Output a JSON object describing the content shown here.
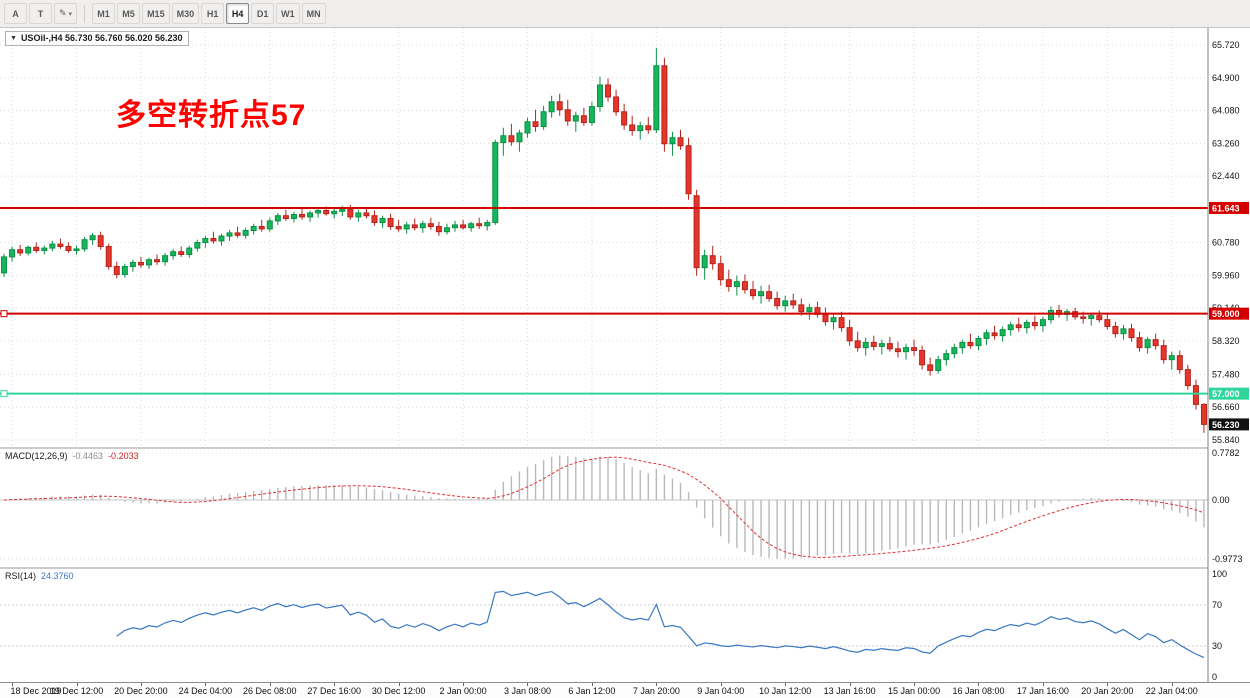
{
  "toolbar": {
    "tools": [
      {
        "label": "A",
        "name": "tool-a-button"
      },
      {
        "label": "T",
        "name": "text-tool-button"
      },
      {
        "label": "✎",
        "name": "drawing-tools-button",
        "has_dropdown": true
      }
    ],
    "timeframes": [
      {
        "label": "M1"
      },
      {
        "label": "M5"
      },
      {
        "label": "M15"
      },
      {
        "label": "M30"
      },
      {
        "label": "H1"
      },
      {
        "label": "H4",
        "active": true
      },
      {
        "label": "D1"
      },
      {
        "label": "W1"
      },
      {
        "label": "MN"
      }
    ]
  },
  "chart": {
    "symbol_ohlc": "USOil-,H4 56.730 56.760 56.020 56.230",
    "annotation": {
      "text": "多空转折点57",
      "color": "#ff0000"
    },
    "macd": {
      "name": "MACD(12,26,9)",
      "value1": "-0.4463",
      "value2": "-0.2033"
    },
    "rsi": {
      "name": "RSI(14)",
      "value": "24.3760"
    }
  },
  "chart_data": {
    "type": "candlestick",
    "symbol": "USOil-",
    "timeframe": "H4",
    "quote": {
      "open": "56.730",
      "high": "56.760",
      "low": "56.020",
      "close": "56.230"
    },
    "colors": {
      "up": "#16b75c",
      "up_border": "#0b8f45",
      "down": "#e6352b",
      "down_border": "#b3241c",
      "macd_bar": "#b9b9b9",
      "macd_signal": "#e03131",
      "rsi_line": "#3a77c2",
      "grid": "#dadada",
      "hline_red": "#d40000",
      "hline_green": "#2fd69b",
      "current_tag_bg": "#111111"
    },
    "price_axis": {
      "top_price": 65.72,
      "bottom_price": 55.84,
      "labels": [
        "65.720",
        "64.900",
        "64.080",
        "63.260",
        "62.440",
        "61.620",
        "60.780",
        "59.960",
        "59.140",
        "58.320",
        "57.480",
        "56.660",
        "55.840"
      ]
    },
    "time_axis": {
      "labels": [
        "18 Dec 2019",
        "19 Dec 12:00",
        "20 Dec 20:00",
        "24 Dec 04:00",
        "26 Dec 08:00",
        "27 Dec 16:00",
        "30 Dec 12:00",
        "2 Jan 00:00",
        "3 Jan 08:00",
        "6 Jan 12:00",
        "7 Jan 20:00",
        "9 Jan 04:00",
        "10 Jan 12:00",
        "13 Jan 16:00",
        "15 Jan 00:00",
        "16 Jan 08:00",
        "17 Jan 16:00",
        "20 Jan 20:00",
        "22 Jan 04:00"
      ],
      "bar_indices": [
        1,
        9,
        17,
        25,
        33,
        41,
        49,
        57,
        65,
        73,
        81,
        89,
        97,
        105,
        113,
        121,
        129,
        137,
        145
      ]
    },
    "hlines": [
      {
        "name": "hline-61643",
        "price": 61.643,
        "label": "61.643",
        "color": "#d40000",
        "handle": false
      },
      {
        "name": "hline-59000",
        "price": 59.0,
        "label": "59.000",
        "color": "#d40000",
        "handle": true
      },
      {
        "name": "hline-57000",
        "price": 57.0,
        "label": "57.000",
        "color": "#2fd69b",
        "handle": true
      }
    ],
    "current_price": {
      "price": 56.23,
      "label": "56.230"
    },
    "macd": {
      "params": "12,26,9",
      "values": [
        "-0.4463",
        "-0.2033"
      ],
      "axis": [
        "0.7782",
        "0.00",
        "-0.9773"
      ]
    },
    "rsi": {
      "period": 14,
      "value": "24.3760",
      "axis": [
        "100",
        "70",
        "30",
        "0"
      ],
      "levels": [
        70,
        30
      ]
    },
    "candles": [
      [
        60.02,
        60.5,
        59.92,
        60.42
      ],
      [
        60.42,
        60.68,
        60.3,
        60.6
      ],
      [
        60.6,
        60.72,
        60.44,
        60.52
      ],
      [
        60.52,
        60.7,
        60.46,
        60.66
      ],
      [
        60.66,
        60.78,
        60.52,
        60.58
      ],
      [
        60.58,
        60.7,
        60.48,
        60.64
      ],
      [
        60.64,
        60.82,
        60.56,
        60.74
      ],
      [
        60.74,
        60.88,
        60.62,
        60.68
      ],
      [
        60.68,
        60.78,
        60.52,
        60.58
      ],
      [
        60.58,
        60.7,
        60.48,
        60.62
      ],
      [
        60.62,
        60.92,
        60.55,
        60.85
      ],
      [
        60.85,
        61.02,
        60.72,
        60.95
      ],
      [
        60.95,
        61.05,
        60.6,
        60.68
      ],
      [
        60.68,
        60.75,
        60.1,
        60.18
      ],
      [
        60.18,
        60.3,
        59.88,
        59.98
      ],
      [
        59.98,
        60.25,
        59.9,
        60.18
      ],
      [
        60.18,
        60.35,
        60.05,
        60.28
      ],
      [
        60.28,
        60.42,
        60.15,
        60.22
      ],
      [
        60.22,
        60.4,
        60.12,
        60.35
      ],
      [
        60.35,
        60.48,
        60.22,
        60.3
      ],
      [
        60.3,
        60.52,
        60.2,
        60.45
      ],
      [
        60.45,
        60.62,
        60.35,
        60.55
      ],
      [
        60.55,
        60.68,
        60.42,
        60.48
      ],
      [
        60.48,
        60.7,
        60.4,
        60.64
      ],
      [
        60.64,
        60.85,
        60.55,
        60.78
      ],
      [
        60.78,
        60.95,
        60.65,
        60.88
      ],
      [
        60.88,
        61.05,
        60.75,
        60.82
      ],
      [
        60.82,
        61.0,
        60.7,
        60.94
      ],
      [
        60.94,
        61.1,
        60.82,
        61.02
      ],
      [
        61.02,
        61.18,
        60.9,
        60.96
      ],
      [
        60.96,
        61.15,
        60.88,
        61.08
      ],
      [
        61.08,
        61.25,
        60.98,
        61.18
      ],
      [
        61.18,
        61.35,
        61.05,
        61.12
      ],
      [
        61.12,
        61.4,
        61.05,
        61.32
      ],
      [
        61.32,
        61.52,
        61.22,
        61.45
      ],
      [
        61.45,
        61.6,
        61.32,
        61.38
      ],
      [
        61.38,
        61.55,
        61.28,
        61.48
      ],
      [
        61.48,
        61.64,
        61.35,
        61.42
      ],
      [
        61.42,
        61.58,
        61.3,
        61.52
      ],
      [
        61.52,
        61.66,
        61.4,
        61.58
      ],
      [
        61.58,
        61.68,
        61.45,
        61.5
      ],
      [
        61.5,
        61.62,
        61.38,
        61.56
      ],
      [
        61.56,
        61.7,
        61.44,
        61.62
      ],
      [
        61.62,
        61.72,
        61.35,
        61.42
      ],
      [
        61.42,
        61.6,
        61.3,
        61.52
      ],
      [
        61.52,
        61.65,
        61.38,
        61.45
      ],
      [
        61.45,
        61.58,
        61.2,
        61.28
      ],
      [
        61.28,
        61.45,
        61.15,
        61.38
      ],
      [
        61.38,
        61.5,
        61.1,
        61.18
      ],
      [
        61.18,
        61.35,
        61.05,
        61.12
      ],
      [
        61.12,
        61.3,
        61.0,
        61.22
      ],
      [
        61.22,
        61.38,
        61.08,
        61.15
      ],
      [
        61.15,
        61.32,
        61.02,
        61.25
      ],
      [
        61.25,
        61.4,
        61.1,
        61.18
      ],
      [
        61.18,
        61.3,
        60.95,
        61.05
      ],
      [
        61.05,
        61.25,
        60.98,
        61.15
      ],
      [
        61.15,
        61.32,
        61.05,
        61.22
      ],
      [
        61.22,
        61.35,
        61.1,
        61.15
      ],
      [
        61.15,
        61.3,
        61.05,
        61.25
      ],
      [
        61.25,
        61.4,
        61.12,
        61.2
      ],
      [
        61.2,
        61.35,
        61.08,
        61.28
      ],
      [
        61.28,
        63.35,
        61.22,
        63.28
      ],
      [
        63.28,
        63.65,
        62.95,
        63.45
      ],
      [
        63.45,
        63.75,
        63.2,
        63.3
      ],
      [
        63.3,
        63.6,
        63.05,
        63.52
      ],
      [
        63.52,
        63.9,
        63.4,
        63.8
      ],
      [
        63.8,
        64.1,
        63.55,
        63.68
      ],
      [
        63.68,
        64.2,
        63.6,
        64.05
      ],
      [
        64.05,
        64.45,
        63.9,
        64.3
      ],
      [
        64.3,
        64.5,
        63.95,
        64.1
      ],
      [
        64.1,
        64.35,
        63.7,
        63.82
      ],
      [
        63.82,
        64.05,
        63.55,
        63.95
      ],
      [
        63.95,
        64.15,
        63.7,
        63.78
      ],
      [
        63.78,
        64.3,
        63.7,
        64.18
      ],
      [
        64.18,
        64.93,
        64.05,
        64.72
      ],
      [
        64.72,
        64.88,
        64.3,
        64.42
      ],
      [
        64.42,
        64.6,
        63.95,
        64.05
      ],
      [
        64.05,
        64.25,
        63.6,
        63.72
      ],
      [
        63.72,
        63.95,
        63.45,
        63.58
      ],
      [
        63.58,
        63.8,
        63.35,
        63.7
      ],
      [
        63.7,
        63.92,
        63.5,
        63.6
      ],
      [
        63.6,
        65.65,
        63.52,
        65.2
      ],
      [
        65.2,
        65.4,
        63.05,
        63.25
      ],
      [
        63.25,
        63.55,
        62.95,
        63.4
      ],
      [
        63.4,
        63.6,
        63.1,
        63.2
      ],
      [
        63.2,
        63.4,
        61.85,
        62.0
      ],
      [
        61.95,
        62.1,
        59.95,
        60.15
      ],
      [
        60.15,
        60.6,
        59.85,
        60.45
      ],
      [
        60.45,
        60.7,
        60.1,
        60.25
      ],
      [
        60.25,
        60.45,
        59.7,
        59.85
      ],
      [
        59.85,
        60.1,
        59.55,
        59.68
      ],
      [
        59.68,
        59.95,
        59.45,
        59.8
      ],
      [
        59.8,
        59.98,
        59.5,
        59.6
      ],
      [
        59.6,
        59.82,
        59.35,
        59.45
      ],
      [
        59.45,
        59.7,
        59.25,
        59.55
      ],
      [
        59.55,
        59.72,
        59.3,
        59.38
      ],
      [
        59.38,
        59.55,
        59.1,
        59.2
      ],
      [
        59.2,
        59.45,
        59.05,
        59.32
      ],
      [
        59.32,
        59.5,
        59.12,
        59.22
      ],
      [
        59.22,
        59.38,
        58.95,
        59.05
      ],
      [
        59.05,
        59.25,
        58.85,
        59.15
      ],
      [
        59.15,
        59.3,
        58.9,
        58.98
      ],
      [
        58.98,
        59.15,
        58.7,
        58.8
      ],
      [
        58.8,
        59.0,
        58.6,
        58.9
      ],
      [
        58.9,
        59.05,
        58.55,
        58.65
      ],
      [
        58.65,
        58.85,
        58.2,
        58.32
      ],
      [
        58.32,
        58.55,
        58.05,
        58.15
      ],
      [
        58.15,
        58.4,
        57.95,
        58.28
      ],
      [
        58.28,
        58.45,
        58.08,
        58.18
      ],
      [
        58.18,
        58.35,
        57.98,
        58.25
      ],
      [
        58.25,
        58.42,
        58.05,
        58.12
      ],
      [
        58.12,
        58.3,
        57.9,
        58.05
      ],
      [
        58.05,
        58.25,
        57.85,
        58.15
      ],
      [
        58.15,
        58.35,
        57.95,
        58.08
      ],
      [
        58.08,
        58.2,
        57.6,
        57.72
      ],
      [
        57.72,
        57.9,
        57.45,
        57.58
      ],
      [
        57.58,
        57.95,
        57.5,
        57.85
      ],
      [
        57.85,
        58.1,
        57.7,
        58.0
      ],
      [
        58.0,
        58.25,
        57.88,
        58.15
      ],
      [
        58.15,
        58.35,
        58.0,
        58.28
      ],
      [
        58.28,
        58.5,
        58.12,
        58.2
      ],
      [
        58.2,
        58.45,
        58.08,
        58.38
      ],
      [
        58.38,
        58.6,
        58.22,
        58.52
      ],
      [
        58.52,
        58.7,
        58.35,
        58.45
      ],
      [
        58.45,
        58.68,
        58.3,
        58.6
      ],
      [
        58.6,
        58.8,
        58.45,
        58.72
      ],
      [
        58.72,
        58.9,
        58.55,
        58.65
      ],
      [
        58.65,
        58.85,
        58.5,
        58.78
      ],
      [
        58.78,
        58.95,
        58.6,
        58.7
      ],
      [
        58.7,
        58.92,
        58.55,
        58.85
      ],
      [
        58.85,
        59.18,
        58.75,
        59.08
      ],
      [
        59.08,
        59.22,
        58.9,
        58.98
      ],
      [
        58.98,
        59.12,
        58.82,
        59.05
      ],
      [
        59.05,
        59.15,
        58.85,
        58.92
      ],
      [
        58.92,
        59.05,
        58.75,
        58.88
      ],
      [
        58.88,
        59.0,
        58.7,
        58.95
      ],
      [
        58.95,
        59.08,
        58.78,
        58.85
      ],
      [
        58.85,
        58.98,
        58.6,
        58.68
      ],
      [
        58.68,
        58.8,
        58.4,
        58.5
      ],
      [
        58.5,
        58.72,
        58.35,
        58.62
      ],
      [
        58.62,
        58.75,
        58.3,
        58.4
      ],
      [
        58.4,
        58.55,
        58.05,
        58.15
      ],
      [
        58.15,
        58.42,
        58.0,
        58.35
      ],
      [
        58.35,
        58.5,
        58.1,
        58.2
      ],
      [
        58.2,
        58.35,
        57.75,
        57.85
      ],
      [
        57.85,
        58.05,
        57.6,
        57.95
      ],
      [
        57.95,
        58.08,
        57.5,
        57.6
      ],
      [
        57.6,
        57.72,
        57.1,
        57.2
      ],
      [
        57.2,
        57.35,
        56.6,
        56.73
      ],
      [
        56.73,
        56.76,
        56.02,
        56.23
      ]
    ]
  }
}
